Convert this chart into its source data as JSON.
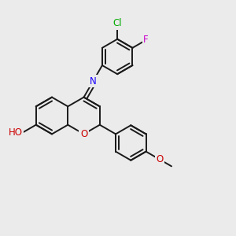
{
  "background_color": "#ebebeb",
  "bond_color": "#1a1a1a",
  "figsize": [
    3.0,
    3.0
  ],
  "dpi": 100,
  "lw": 1.4,
  "bl": 0.078,
  "colors": {
    "N": "#1a00ff",
    "O": "#cc0000",
    "Cl": "#00aa00",
    "F": "#cc00cc",
    "C": "#1a1a1a"
  }
}
